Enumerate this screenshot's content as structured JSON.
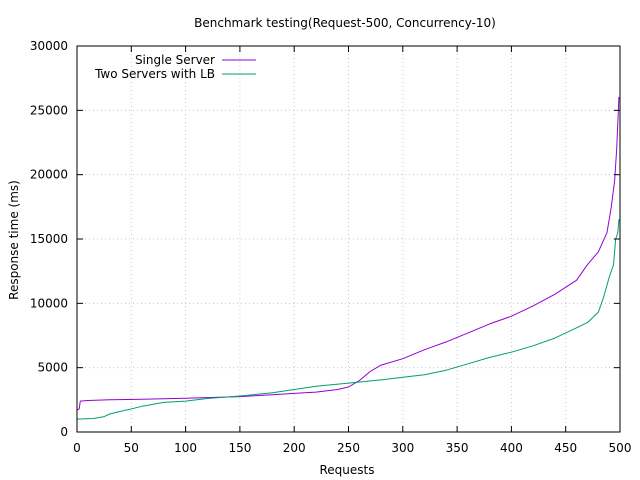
{
  "chart_data": {
    "type": "line",
    "title": "Benchmark testing(Request-500, Concurrency-10)",
    "xlabel": "Requests",
    "ylabel": "Response time (ms)",
    "xlim": [
      0,
      500
    ],
    "ylim": [
      0,
      30000
    ],
    "xticks": [
      0,
      50,
      100,
      150,
      200,
      250,
      300,
      350,
      400,
      450,
      500
    ],
    "yticks": [
      0,
      5000,
      10000,
      15000,
      20000,
      25000,
      30000
    ],
    "grid": true,
    "legend_position": "top-left",
    "series": [
      {
        "name": "Single Server",
        "color": "#9400d3",
        "points": [
          [
            0,
            1700
          ],
          [
            2,
            1800
          ],
          [
            3,
            2400
          ],
          [
            10,
            2450
          ],
          [
            30,
            2500
          ],
          [
            60,
            2550
          ],
          [
            100,
            2620
          ],
          [
            150,
            2750
          ],
          [
            180,
            2900
          ],
          [
            200,
            3000
          ],
          [
            220,
            3100
          ],
          [
            240,
            3300
          ],
          [
            250,
            3500
          ],
          [
            260,
            4000
          ],
          [
            270,
            4700
          ],
          [
            280,
            5200
          ],
          [
            300,
            5700
          ],
          [
            320,
            6400
          ],
          [
            340,
            7000
          ],
          [
            360,
            7700
          ],
          [
            380,
            8400
          ],
          [
            400,
            9000
          ],
          [
            420,
            9800
          ],
          [
            440,
            10700
          ],
          [
            460,
            11800
          ],
          [
            470,
            13000
          ],
          [
            480,
            14000
          ],
          [
            488,
            15500
          ],
          [
            492,
            17500
          ],
          [
            495,
            19500
          ],
          [
            497,
            22000
          ],
          [
            498,
            24000
          ],
          [
            499,
            26000
          ],
          [
            500,
            26000
          ]
        ]
      },
      {
        "name": "Two Servers with LB",
        "color": "#009e73",
        "points": [
          [
            0,
            1000
          ],
          [
            15,
            1050
          ],
          [
            25,
            1200
          ],
          [
            30,
            1400
          ],
          [
            40,
            1600
          ],
          [
            60,
            2000
          ],
          [
            80,
            2300
          ],
          [
            100,
            2400
          ],
          [
            120,
            2600
          ],
          [
            150,
            2800
          ],
          [
            180,
            3050
          ],
          [
            200,
            3300
          ],
          [
            220,
            3550
          ],
          [
            250,
            3800
          ],
          [
            280,
            4050
          ],
          [
            300,
            4250
          ],
          [
            320,
            4450
          ],
          [
            340,
            4800
          ],
          [
            360,
            5300
          ],
          [
            380,
            5800
          ],
          [
            400,
            6200
          ],
          [
            420,
            6700
          ],
          [
            440,
            7300
          ],
          [
            460,
            8100
          ],
          [
            470,
            8500
          ],
          [
            480,
            9300
          ],
          [
            485,
            10500
          ],
          [
            490,
            12000
          ],
          [
            494,
            13000
          ],
          [
            496,
            15000
          ],
          [
            498,
            15500
          ],
          [
            499,
            16500
          ],
          [
            500,
            16500
          ]
        ]
      }
    ]
  }
}
